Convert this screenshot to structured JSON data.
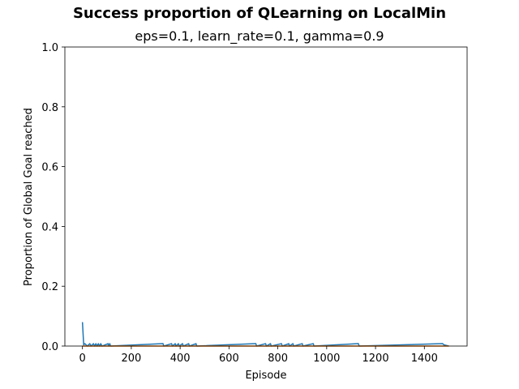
{
  "chart_data": {
    "type": "line",
    "title": "Success proportion of QLearning on LocalMin",
    "subtitle": "eps=0.1, learn_rate=0.1, gamma=0.9",
    "xlabel": "Episode",
    "ylabel": "Proportion of Global Goal reached",
    "xlim": [
      -72,
      1575
    ],
    "ylim": [
      0,
      1
    ],
    "xticks": [
      0,
      200,
      400,
      600,
      800,
      1000,
      1200,
      1400
    ],
    "xtick_labels": [
      "0",
      "200",
      "400",
      "600",
      "800",
      "1000",
      "1200",
      "1400"
    ],
    "yticks": [
      0.0,
      0.2,
      0.4,
      0.6,
      0.8,
      1.0
    ],
    "ytick_labels": [
      "0.0",
      "0.2",
      "0.4",
      "0.6",
      "0.8",
      "1.0"
    ],
    "grid": false,
    "legend": "none",
    "series": [
      {
        "color": "#1f77b4",
        "points": [
          [
            0,
            0.08
          ],
          [
            5,
            0.004
          ],
          [
            10,
            0.008
          ],
          [
            15,
            0.004
          ],
          [
            20,
            0.0
          ],
          [
            30,
            0.008
          ],
          [
            35,
            0.0
          ],
          [
            45,
            0.008
          ],
          [
            50,
            0.0
          ],
          [
            55,
            0.008
          ],
          [
            60,
            0.0
          ],
          [
            65,
            0.008
          ],
          [
            70,
            0.0
          ],
          [
            75,
            0.008
          ],
          [
            80,
            0.0
          ],
          [
            105,
            0.008
          ],
          [
            108,
            0.0
          ],
          [
            112,
            0.008
          ],
          [
            115,
            0.0
          ],
          [
            330,
            0.008
          ],
          [
            333,
            0.0
          ],
          [
            365,
            0.008
          ],
          [
            368,
            0.0
          ],
          [
            380,
            0.008
          ],
          [
            383,
            0.0
          ],
          [
            393,
            0.008
          ],
          [
            396,
            0.0
          ],
          [
            410,
            0.008
          ],
          [
            413,
            0.0
          ],
          [
            435,
            0.008
          ],
          [
            438,
            0.0
          ],
          [
            465,
            0.008
          ],
          [
            468,
            0.0
          ],
          [
            710,
            0.008
          ],
          [
            713,
            0.0
          ],
          [
            750,
            0.008
          ],
          [
            753,
            0.0
          ],
          [
            770,
            0.008
          ],
          [
            773,
            0.0
          ],
          [
            815,
            0.008
          ],
          [
            818,
            0.0
          ],
          [
            845,
            0.008
          ],
          [
            848,
            0.0
          ],
          [
            862,
            0.008
          ],
          [
            865,
            0.0
          ],
          [
            900,
            0.008
          ],
          [
            903,
            0.0
          ],
          [
            945,
            0.008
          ],
          [
            948,
            0.0
          ],
          [
            1130,
            0.008
          ],
          [
            1133,
            0.0
          ],
          [
            1475,
            0.008
          ],
          [
            1480,
            0.004
          ],
          [
            1500,
            0.0
          ]
        ]
      },
      {
        "color": "#ff7f0e",
        "points": [
          [
            0,
            0.0
          ],
          [
            1500,
            0.0
          ]
        ]
      }
    ]
  }
}
